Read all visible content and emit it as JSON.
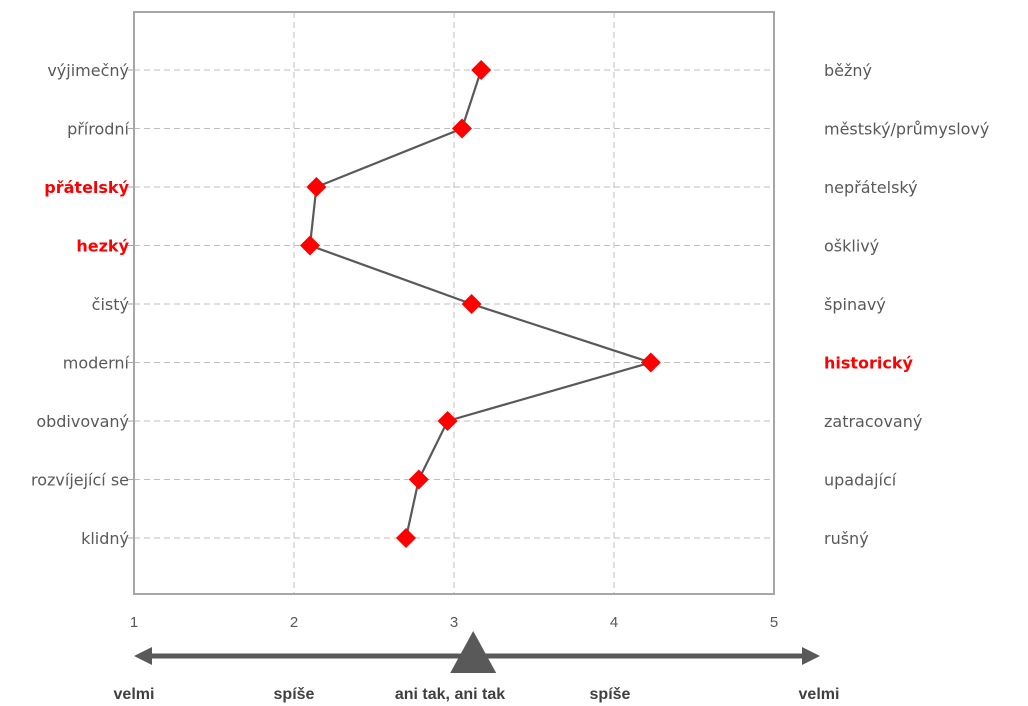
{
  "chart_data": {
    "type": "line",
    "categories": [
      {
        "left": "výjimečný",
        "right": "běžný",
        "highlight": "none"
      },
      {
        "left": "přírodní",
        "right": "městský/průmyslový",
        "highlight": "none"
      },
      {
        "left": "přátelský",
        "right": "nepřátelský",
        "highlight": "left"
      },
      {
        "left": "hezký",
        "right": "ošklivý",
        "highlight": "left"
      },
      {
        "left": "čistý",
        "right": "špinavý",
        "highlight": "none"
      },
      {
        "left": "moderní",
        "right": "historický",
        "highlight": "right"
      },
      {
        "left": "obdivovaný",
        "right": "zatracovaný",
        "highlight": "none"
      },
      {
        "left": "rozvíjející se",
        "right": "upadající",
        "highlight": "none"
      },
      {
        "left": "klidný",
        "right": "rušný",
        "highlight": "none"
      }
    ],
    "values": [
      3.17,
      3.05,
      2.14,
      2.1,
      3.11,
      4.23,
      2.96,
      2.78,
      2.7
    ],
    "x_ticks": [
      "1",
      "2",
      "3",
      "4",
      "5"
    ],
    "xlim": [
      1,
      5
    ],
    "mean_marker": 3.12,
    "scale_labels": [
      "velmi",
      "spíše",
      "ani tak, ani tak",
      "spíše",
      "velmi"
    ],
    "grid": true,
    "colors": {
      "marker": "#ff0000",
      "line": "#595959",
      "highlight_text": "#ff0000",
      "text": "#595959",
      "grid": "#bfbfbf",
      "frame": "#a6a6a6",
      "arrow": "#595959"
    }
  }
}
